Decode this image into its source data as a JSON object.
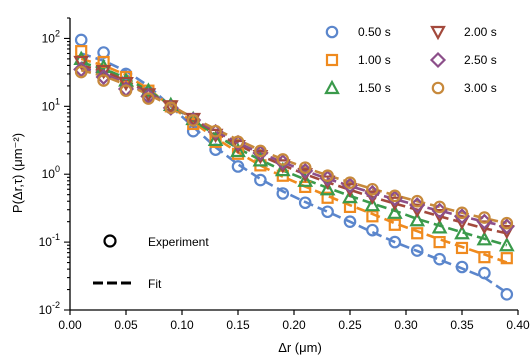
{
  "chart_data": {
    "type": "scatter",
    "xlabel": "Δr (μm)",
    "ylabel": "P(Δr,τ) (μm⁻²)",
    "xlim": [
      0.0,
      0.4
    ],
    "ylim": [
      0.01,
      200
    ],
    "yscale": "log",
    "x_ticks": [
      "0.00",
      "0.05",
      "0.10",
      "0.15",
      "0.20",
      "0.25",
      "0.30",
      "0.35",
      "0.40"
    ],
    "y_ticks": [
      {
        "base": "10",
        "exp": "2",
        "value": 100
      },
      {
        "base": "10",
        "exp": "1",
        "value": 10
      },
      {
        "base": "10",
        "exp": "0",
        "value": 1
      },
      {
        "base": "10",
        "exp": "-1",
        "value": 0.1
      },
      {
        "base": "10",
        "exp": "-2",
        "value": 0.01
      }
    ],
    "grid": false,
    "legend_position": "top-right",
    "style_legend": {
      "marker_label": "Experiment",
      "line_label": "Fit"
    },
    "x": [
      0.01,
      0.03,
      0.05,
      0.07,
      0.09,
      0.11,
      0.13,
      0.15,
      0.17,
      0.19,
      0.21,
      0.23,
      0.25,
      0.27,
      0.29,
      0.31,
      0.33,
      0.35,
      0.37,
      0.39
    ],
    "series": [
      {
        "name": "0.50 s",
        "marker": "circle",
        "color": "#5b86cc",
        "values": [
          95,
          62,
          30,
          16,
          9.5,
          4.3,
          2.3,
          1.3,
          0.82,
          0.52,
          0.38,
          0.28,
          0.2,
          0.15,
          0.1,
          0.075,
          0.056,
          0.043,
          0.035,
          0.017
        ],
        "fit": [
          60,
          47,
          33,
          20,
          10,
          5.0,
          2.5,
          1.4,
          0.85,
          0.56,
          0.39,
          0.28,
          0.2,
          0.14,
          0.1,
          0.074,
          0.055,
          0.041,
          0.03,
          0.018
        ]
      },
      {
        "name": "1.00 s",
        "marker": "square",
        "color": "#ef8a1e",
        "values": [
          65,
          45,
          27,
          17,
          10,
          5.5,
          3.0,
          2.0,
          1.35,
          0.95,
          0.65,
          0.45,
          0.33,
          0.24,
          0.18,
          0.135,
          0.1,
          0.082,
          0.06,
          0.058
        ],
        "fit": [
          50,
          40,
          29,
          18,
          10,
          5.8,
          3.4,
          2.1,
          1.35,
          0.92,
          0.66,
          0.48,
          0.35,
          0.26,
          0.19,
          0.145,
          0.11,
          0.085,
          0.066,
          0.05
        ]
      },
      {
        "name": "1.50 s",
        "marker": "triangle-up",
        "color": "#3a9a4b",
        "values": [
          50,
          38,
          24,
          17,
          10.5,
          6.5,
          3.2,
          2.2,
          1.6,
          1.15,
          0.8,
          0.6,
          0.46,
          0.35,
          0.27,
          0.21,
          0.165,
          0.135,
          0.11,
          0.09
        ],
        "fit": [
          44,
          36,
          26,
          17,
          10.5,
          6.2,
          3.8,
          2.4,
          1.62,
          1.14,
          0.84,
          0.63,
          0.48,
          0.37,
          0.29,
          0.22,
          0.175,
          0.14,
          0.112,
          0.09
        ]
      },
      {
        "name": "2.00 s",
        "marker": "triangle-down",
        "color": "#a3493c",
        "values": [
          45,
          33,
          22,
          15,
          10,
          6.5,
          3.8,
          2.6,
          1.85,
          1.35,
          1.0,
          0.78,
          0.6,
          0.47,
          0.38,
          0.3,
          0.25,
          0.2,
          0.17,
          0.145
        ],
        "fit": [
          40,
          33,
          24,
          16,
          10.5,
          6.5,
          4.1,
          2.7,
          1.88,
          1.36,
          1.0,
          0.76,
          0.59,
          0.46,
          0.37,
          0.3,
          0.24,
          0.195,
          0.16,
          0.135
        ]
      },
      {
        "name": "2.50 s",
        "marker": "diamond",
        "color": "#8c4f8a",
        "values": [
          35,
          27,
          18,
          14,
          9.5,
          6.3,
          4.2,
          2.9,
          2.05,
          1.5,
          1.12,
          0.87,
          0.68,
          0.53,
          0.44,
          0.35,
          0.29,
          0.24,
          0.2,
          0.17
        ],
        "fit": [
          37,
          30,
          22,
          15.5,
          10.3,
          6.6,
          4.3,
          2.9,
          2.05,
          1.5,
          1.12,
          0.86,
          0.67,
          0.53,
          0.43,
          0.35,
          0.29,
          0.24,
          0.2,
          0.17
        ]
      },
      {
        "name": "3.00 s",
        "marker": "circle",
        "color": "#c7893b",
        "values": [
          32,
          24,
          17,
          13,
          9.5,
          6.2,
          4.3,
          3.0,
          2.2,
          1.65,
          1.25,
          0.95,
          0.75,
          0.6,
          0.48,
          0.4,
          0.33,
          0.27,
          0.23,
          0.19
        ],
        "fit": [
          34,
          28,
          21,
          15,
          10.2,
          6.8,
          4.6,
          3.2,
          2.25,
          1.66,
          1.25,
          0.96,
          0.76,
          0.61,
          0.49,
          0.4,
          0.33,
          0.27,
          0.225,
          0.19
        ]
      }
    ]
  }
}
